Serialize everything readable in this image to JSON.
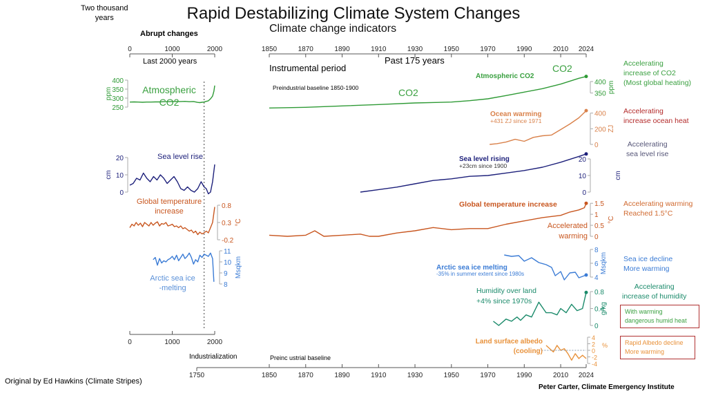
{
  "header": {
    "title": "Rapid Destabilizing Climate System Changes",
    "subtitle": "Climate change indicators",
    "left_label": "Two thousand\nyears",
    "left_label_1": "Two thousand",
    "left_label_2": "years",
    "abrupt_label": "Abrupt changes",
    "last2000_label": "Last 2000 years",
    "past175_label": "Past 175 years",
    "instrumental_label": "Instrumental period",
    "preindustrial_label": "Preindustrial baseline 1850-1900",
    "industrialization_label": "Industrialization",
    "preindustrial_bottom_label": "Preinc ustrial baseline"
  },
  "colors": {
    "co2": "#2e9a35",
    "ocean": "#d9814a",
    "sea_level": "#1c1f7a",
    "temperature": "#c8561f",
    "sea_ice": "#3a7bd5",
    "humidity": "#1a8a6a",
    "albedo": "#e8913a",
    "ocean_heat_note": "#b32a2a",
    "sea_level_note": "#555577",
    "box_border": "#b03030"
  },
  "footer": {
    "credit_left": "Original by Ed Hawkins (Climate Stripes)",
    "credit_right": "Peter Carter, Climate  Emergency Institute"
  },
  "right_notes": {
    "co2": [
      "Accelerating",
      "increase of CO2",
      "(Most global heating)"
    ],
    "ocean": [
      "Accelerating",
      "increase ocean heat"
    ],
    "sea_level": [
      "Accelerating",
      "sea level rise"
    ],
    "temperature": [
      "Accelerating warming",
      "Reached 1.5°C"
    ],
    "sea_ice": [
      "Sea ice decline",
      "More warming"
    ],
    "humidity": [
      "Accelerating",
      "increase of humidity"
    ],
    "humidity_box": [
      "With warming",
      "dangerous humid heat"
    ],
    "albedo_box": [
      "Rapid Albedo decline",
      "More warming"
    ]
  },
  "chart_data": [
    {
      "type": "line",
      "panel": "left-2000-years",
      "title": "Abrupt changes",
      "xlabel": "Last 2000 years",
      "x_ticks": [
        0,
        1000,
        2000
      ],
      "x_range": [
        0,
        2000
      ],
      "marker_year": 1750,
      "series": [
        {
          "name": "Atmospheric CO2",
          "label_lines": [
            "Atmospheric",
            "CO2"
          ],
          "unit": "ppm",
          "y_ticks": [
            250,
            300,
            350,
            400
          ],
          "y_range": [
            250,
            400
          ],
          "x": [
            0,
            100,
            200,
            300,
            400,
            500,
            600,
            700,
            800,
            900,
            1000,
            1100,
            1200,
            1300,
            1400,
            1500,
            1600,
            1650,
            1700,
            1750,
            1800,
            1850,
            1900,
            1950,
            1980,
            2000
          ],
          "values": [
            278,
            279,
            278,
            277,
            278,
            278,
            279,
            279,
            280,
            280,
            281,
            281,
            281,
            282,
            280,
            281,
            276,
            275,
            277,
            278,
            282,
            285,
            296,
            311,
            338,
            370
          ]
        },
        {
          "name": "Sea level rise",
          "label_lines": [
            "Sea level rise"
          ],
          "unit": "cm",
          "y_ticks": [
            0,
            10,
            20
          ],
          "y_range": [
            0,
            20
          ],
          "x": [
            0,
            80,
            160,
            240,
            320,
            400,
            480,
            560,
            640,
            720,
            800,
            880,
            960,
            1040,
            1120,
            1200,
            1280,
            1360,
            1440,
            1520,
            1600,
            1680,
            1750,
            1800,
            1850,
            1900,
            1950,
            2000
          ],
          "values": [
            4,
            5,
            8,
            7,
            11,
            8,
            6,
            9,
            7,
            10,
            8,
            5,
            7,
            9,
            6,
            2,
            1,
            3,
            1,
            0,
            2,
            6,
            3,
            2,
            -1,
            0,
            6,
            16
          ]
        },
        {
          "name": "Global temperature increase",
          "label_lines": [
            "Global temperature",
            "increase"
          ],
          "unit": "°C",
          "y_ticks": [
            -0.2,
            0.3,
            0.8
          ],
          "y_range": [
            -0.2,
            0.8
          ],
          "x": [
            0,
            50,
            100,
            150,
            200,
            250,
            300,
            350,
            400,
            450,
            500,
            550,
            600,
            650,
            700,
            750,
            800,
            850,
            900,
            950,
            1000,
            1050,
            1100,
            1150,
            1200,
            1250,
            1300,
            1350,
            1400,
            1450,
            1500,
            1550,
            1600,
            1650,
            1700,
            1750,
            1800,
            1850,
            1900,
            1950,
            2000
          ],
          "values": [
            0.15,
            0.25,
            0.2,
            0.3,
            0.22,
            0.28,
            0.18,
            0.3,
            0.25,
            0.2,
            0.3,
            0.22,
            0.28,
            0.32,
            0.2,
            0.27,
            0.25,
            0.3,
            0.2,
            0.22,
            0.25,
            0.18,
            0.2,
            0.15,
            0.2,
            0.12,
            0.15,
            0.1,
            0.05,
            0.08,
            0.0,
            0.05,
            -0.05,
            0.02,
            -0.03,
            0.0,
            0.05,
            0.0,
            0.15,
            0.3,
            0.75
          ]
        },
        {
          "name": "Arctic sea ice melting",
          "label_lines": [
            "Arctic sea ice",
            "-melting"
          ],
          "unit": "Msqkm",
          "y_ticks": [
            8,
            9,
            10,
            11
          ],
          "y_range": [
            8,
            11
          ],
          "x": [
            550,
            600,
            650,
            700,
            750,
            800,
            850,
            900,
            950,
            1000,
            1050,
            1100,
            1150,
            1200,
            1250,
            1300,
            1350,
            1400,
            1450,
            1500,
            1550,
            1600,
            1650,
            1700,
            1750,
            1800,
            1850,
            1900,
            1950,
            1980
          ],
          "values": [
            10.2,
            10.4,
            9.7,
            10.3,
            9.9,
            10.1,
            10.0,
            10.2,
            10.3,
            10.5,
            10.2,
            10.6,
            10.1,
            10.4,
            10.7,
            10.3,
            10.5,
            10.8,
            10.4,
            9.8,
            10.2,
            10.0,
            10.6,
            10.4,
            10.7,
            10.6,
            10.5,
            10.8,
            10.3,
            8.2
          ]
        }
      ]
    },
    {
      "type": "line",
      "panel": "right-175-years",
      "xlabel": "Past 175 years",
      "x_ticks": [
        1850,
        1870,
        1890,
        1910,
        1930,
        1950,
        1970,
        1990,
        2010,
        2024
      ],
      "x_range": [
        1850,
        2024
      ],
      "series": [
        {
          "name": "Atmospheric CO2",
          "unit": "ppm",
          "y_ticks": [
            350,
            400
          ],
          "y_range": [
            280,
            430
          ],
          "x": [
            1850,
            1870,
            1890,
            1910,
            1930,
            1950,
            1960,
            1970,
            1980,
            1990,
            2000,
            2010,
            2020,
            2024
          ],
          "values": [
            285,
            288,
            294,
            300,
            307,
            311,
            317,
            325,
            339,
            354,
            369,
            389,
            414,
            422
          ]
        },
        {
          "name": "Ocean warming",
          "annotation": "+431 ZJ since 1971",
          "unit": "ZJ",
          "y_ticks": [
            0,
            200,
            400
          ],
          "y_range": [
            0,
            450
          ],
          "x": [
            1971,
            1975,
            1980,
            1985,
            1990,
            1995,
            2000,
            2005,
            2010,
            2015,
            2020,
            2024
          ],
          "values": [
            0,
            10,
            30,
            65,
            40,
            90,
            110,
            120,
            190,
            260,
            340,
            431
          ]
        },
        {
          "name": "Sea level rising",
          "annotation": "+23cm since 1900",
          "unit": "cm",
          "y_ticks": [
            0,
            10,
            20
          ],
          "y_range": [
            0,
            25
          ],
          "x": [
            1900,
            1910,
            1920,
            1930,
            1940,
            1950,
            1960,
            1970,
            1980,
            1990,
            2000,
            2010,
            2020,
            2024
          ],
          "values": [
            0,
            1.5,
            3,
            5,
            7,
            8,
            9.5,
            10,
            11.5,
            13,
            15,
            18,
            21.5,
            23
          ]
        },
        {
          "name": "Global temperature increase",
          "annotation": "Accelerated warming",
          "unit": "°C",
          "y_ticks": [
            0,
            0.5,
            1,
            1.5
          ],
          "y_range": [
            0,
            1.6
          ],
          "x": [
            1850,
            1860,
            1870,
            1875,
            1880,
            1890,
            1900,
            1905,
            1910,
            1920,
            1930,
            1940,
            1950,
            1960,
            1970,
            1980,
            1990,
            2000,
            2010,
            2015,
            2020,
            2023,
            2024
          ],
          "values": [
            0.05,
            0.0,
            0.05,
            0.25,
            0.0,
            0.05,
            0.1,
            0.0,
            0.0,
            0.15,
            0.25,
            0.4,
            0.3,
            0.35,
            0.35,
            0.55,
            0.7,
            0.85,
            0.95,
            1.1,
            1.2,
            1.3,
            1.5
          ]
        },
        {
          "name": "Arctic sea ice melting",
          "annotation": "-35% in summer extent since 1980s",
          "unit": "Msqkm",
          "y_ticks": [
            4,
            6,
            8
          ],
          "y_range": [
            4,
            8
          ],
          "x": [
            1979,
            1983,
            1987,
            1990,
            1994,
            1998,
            2002,
            2005,
            2007,
            2010,
            2012,
            2015,
            2018,
            2020,
            2024
          ],
          "values": [
            7.2,
            7.0,
            7.1,
            6.3,
            6.8,
            6.1,
            5.8,
            5.4,
            4.2,
            4.8,
            3.6,
            4.6,
            4.7,
            3.9,
            4.3
          ]
        },
        {
          "name": "Humidity over land",
          "annotation": "+4% since 1970s",
          "unit": "g/kg",
          "y_ticks": [
            0,
            0.4,
            0.8
          ],
          "y_range": [
            0,
            0.8
          ],
          "x": [
            1973,
            1976,
            1980,
            1983,
            1986,
            1988,
            1991,
            1994,
            1998,
            2002,
            2005,
            2008,
            2010,
            2013,
            2016,
            2019,
            2022,
            2024
          ],
          "values": [
            0.1,
            0.0,
            0.15,
            0.1,
            0.2,
            0.12,
            0.25,
            0.2,
            0.55,
            0.3,
            0.3,
            0.25,
            0.4,
            0.3,
            0.5,
            0.35,
            0.4,
            0.78
          ]
        },
        {
          "name": "Land surface albedo",
          "annotation": "(cooling)",
          "unit": "%",
          "y_ticks": [
            -4,
            -2,
            0,
            2,
            4
          ],
          "y_range": [
            -4,
            4
          ],
          "x": [
            2002,
            2004,
            2006,
            2008,
            2010,
            2012,
            2014,
            2016,
            2018,
            2020,
            2022,
            2024
          ],
          "values": [
            1.5,
            0.5,
            -0.5,
            1.5,
            0.0,
            0.5,
            -1.0,
            -3.0,
            -1.0,
            -2.5,
            -1.5,
            -2.5
          ]
        }
      ]
    }
  ]
}
